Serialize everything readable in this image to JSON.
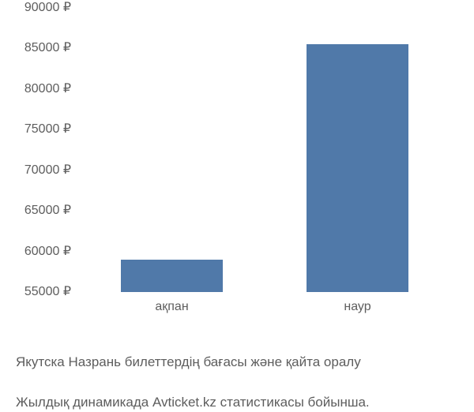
{
  "chart": {
    "type": "bar",
    "categories": [
      "ақпан",
      "наур"
    ],
    "values": [
      59000,
      85500
    ],
    "bar_color": "#5079a9",
    "bar_width": 0.55,
    "ylim": [
      55000,
      90000
    ],
    "ytick_step": 5000,
    "currency_suffix": " ₽",
    "background_color": "#ffffff",
    "tick_color": "#5d5d5d",
    "tick_fontsize": 16,
    "caption_fontsize": 17,
    "caption_color": "#5d5d5d",
    "yticks": [
      {
        "v": 55000,
        "label": "55000 ₽"
      },
      {
        "v": 60000,
        "label": "60000 ₽"
      },
      {
        "v": 65000,
        "label": "65000 ₽"
      },
      {
        "v": 70000,
        "label": "70000 ₽"
      },
      {
        "v": 75000,
        "label": "75000 ₽"
      },
      {
        "v": 80000,
        "label": "80000 ₽"
      },
      {
        "v": 85000,
        "label": "85000 ₽"
      },
      {
        "v": 90000,
        "label": "90000 ₽"
      }
    ]
  },
  "caption": {
    "line1": "Якутска Назрань билеттердің бағасы және қайта оралу",
    "line2": "Жылдық динамикада Avticket.kz статистикасы бойынша."
  }
}
